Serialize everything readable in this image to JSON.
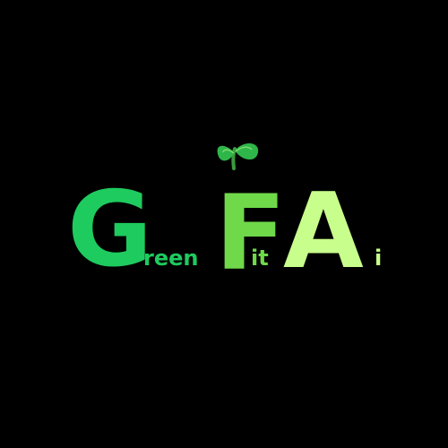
{
  "logo": {
    "letters": {
      "g": "G",
      "f": "F",
      "a": "A"
    },
    "words": {
      "green_rest": "reen",
      "fit_rest": "it",
      "ai_rest": "i"
    },
    "colors": {
      "background": "#000000",
      "green": "#1ecb5e",
      "fit": "#6fd94a",
      "ai": "#c8ff8c",
      "sprout_leaf": "#2fb64a",
      "sprout_stem": "#3c9a3c"
    },
    "icon": "sprout-icon"
  }
}
